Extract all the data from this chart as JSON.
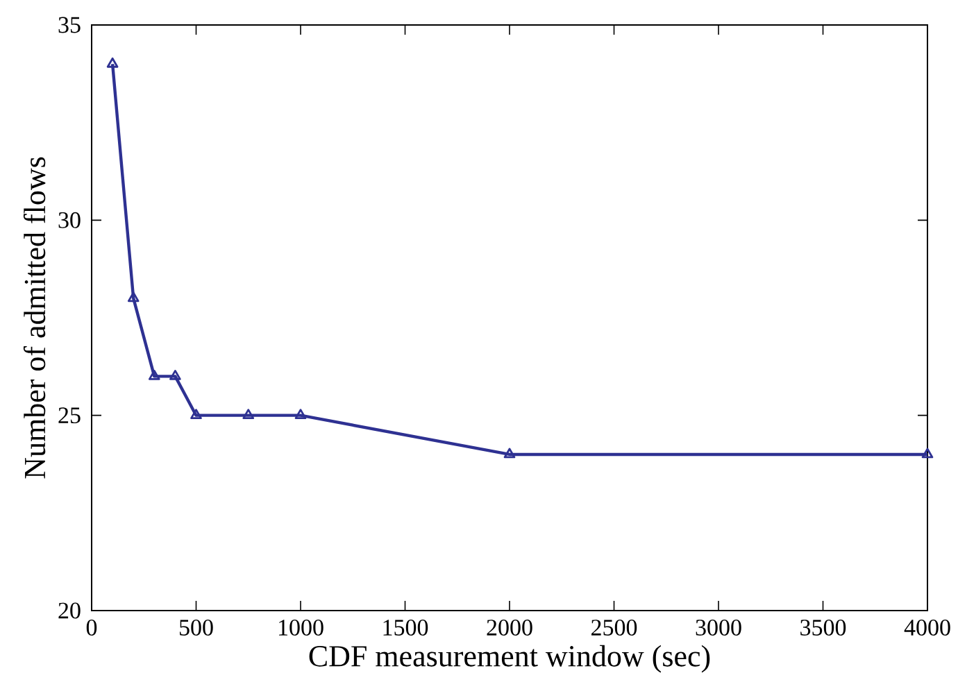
{
  "chart_data": {
    "type": "line",
    "xlabel": "CDF measurement window (sec)",
    "ylabel": "Number of admitted flows",
    "x": [
      100,
      200,
      300,
      400,
      500,
      750,
      1000,
      2000,
      4000
    ],
    "series": [
      {
        "color": "#2e3192",
        "values": [
          34,
          28,
          26,
          26,
          25,
          25,
          25,
          24,
          24
        ]
      }
    ],
    "xlim": [
      0,
      4000
    ],
    "xticks": [
      0,
      500,
      1000,
      1500,
      2000,
      2500,
      3000,
      3500,
      4000
    ],
    "ylim": [
      20,
      35
    ],
    "yticks": [
      20,
      25,
      30,
      35
    ],
    "grid": false,
    "marker": "triangle",
    "line_style": "solid"
  }
}
